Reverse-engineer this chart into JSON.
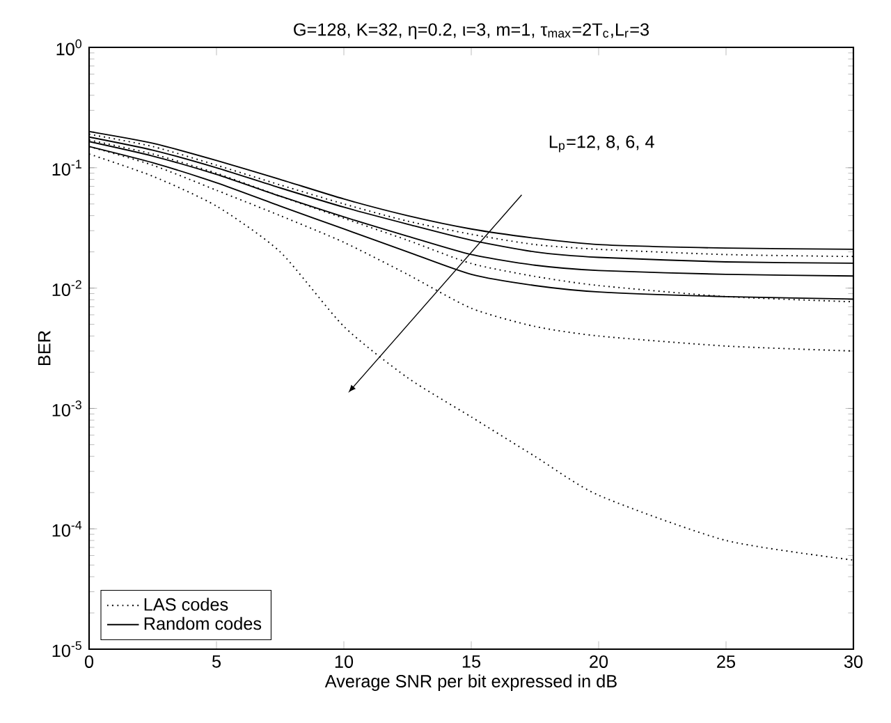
{
  "chart_data": {
    "type": "line",
    "title": "G=128, K=32, η=0.2, ι=3, m=1,  τ$_{max}$=2T$_{c}$,L$_{r}$=3",
    "xlabel": "Average SNR per bit expressed in dB",
    "ylabel": "BER",
    "x": [
      0,
      2.5,
      5,
      7.5,
      10,
      12.5,
      15,
      17.5,
      20,
      25,
      30
    ],
    "series": [
      {
        "color": "#000000",
        "line_style": "solid",
        "values": [
          0.2,
          0.16,
          0.115,
          0.08,
          0.055,
          0.04,
          0.031,
          0.026,
          0.023,
          0.0215,
          0.021
        ]
      },
      {
        "color": "#000000",
        "line_style": "solid",
        "values": [
          0.18,
          0.14,
          0.1,
          0.068,
          0.047,
          0.034,
          0.025,
          0.02,
          0.018,
          0.0165,
          0.0161
        ]
      },
      {
        "color": "#000000",
        "line_style": "solid",
        "values": [
          0.165,
          0.125,
          0.088,
          0.058,
          0.039,
          0.027,
          0.019,
          0.0155,
          0.014,
          0.013,
          0.0126
        ]
      },
      {
        "name": "Random codes",
        "color": "#000000",
        "line_style": "solid",
        "values": [
          0.15,
          0.11,
          0.075,
          0.048,
          0.031,
          0.02,
          0.013,
          0.0105,
          0.0093,
          0.0085,
          0.0081
        ]
      },
      {
        "color": "#000000",
        "line_style": "dotted",
        "values": [
          0.19,
          0.15,
          0.105,
          0.072,
          0.05,
          0.036,
          0.028,
          0.023,
          0.021,
          0.019,
          0.0183
        ]
      },
      {
        "color": "#000000",
        "line_style": "dotted",
        "values": [
          0.17,
          0.13,
          0.09,
          0.058,
          0.038,
          0.025,
          0.016,
          0.0125,
          0.0105,
          0.0085,
          0.0077
        ]
      },
      {
        "color": "#000000",
        "line_style": "dotted",
        "values": [
          0.15,
          0.105,
          0.065,
          0.04,
          0.024,
          0.013,
          0.0068,
          0.0048,
          0.004,
          0.0033,
          0.003
        ]
      },
      {
        "name": "LAS codes",
        "color": "#000000",
        "line_style": "dotted",
        "values": [
          0.13,
          0.085,
          0.048,
          0.02,
          0.0048,
          0.0018,
          0.00085,
          0.0004,
          0.00019,
          8e-05,
          5.5e-05
        ]
      }
    ],
    "xlim": [
      0,
      30
    ],
    "xticks": [
      0,
      5,
      10,
      15,
      20,
      25,
      30
    ],
    "ylim": [
      1e-05,
      1
    ],
    "yticks": [
      {
        "value": 1e-05,
        "label": "10$^{-5}$"
      },
      {
        "value": 0.0001,
        "label": "10$^{-4}$"
      },
      {
        "value": 0.001,
        "label": "10$^{-3}$"
      },
      {
        "value": 0.01,
        "label": "10$^{-2}$"
      },
      {
        "value": 0.1,
        "label": "10$^{-1}$"
      },
      {
        "value": 1,
        "label": "10$^{0}$"
      }
    ],
    "log": "y",
    "grid": false,
    "legend": "bottom left",
    "annotations": [
      "L$_{p}$=12, 8, 6, 4"
    ]
  }
}
